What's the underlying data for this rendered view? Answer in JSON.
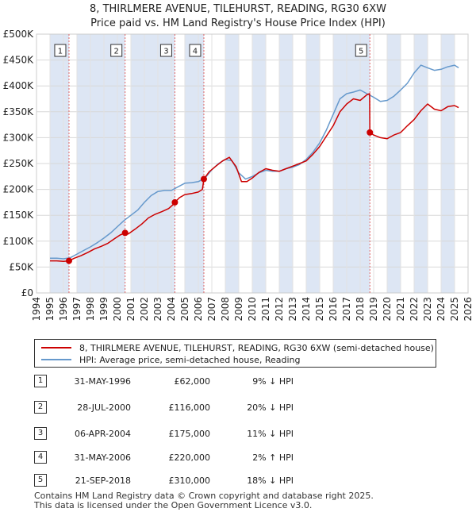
{
  "title_line1": "8, THIRLMERE AVENUE, TILEHURST, READING, RG30 6XW",
  "title_line2": "Price paid vs. HM Land Registry's House Price Index (HPI)",
  "colors": {
    "property": "#cc0000",
    "hpi": "#6699cc",
    "band": "#dde6f4",
    "vline": "#e06666"
  },
  "legend": {
    "property_label": "8, THIRLMERE AVENUE, TILEHURST, READING, RG30 6XW (semi-detached house)",
    "hpi_label": "HPI: Average price, semi-detached house, Reading"
  },
  "transactions": [
    {
      "num": "1",
      "date": "31-MAY-1996",
      "price": "£62,000",
      "hpi": "9% ↓ HPI"
    },
    {
      "num": "2",
      "date": "28-JUL-2000",
      "price": "£116,000",
      "hpi": "20% ↓ HPI"
    },
    {
      "num": "3",
      "date": "06-APR-2004",
      "price": "£175,000",
      "hpi": "11% ↓ HPI"
    },
    {
      "num": "4",
      "date": "31-MAY-2006",
      "price": "£220,000",
      "hpi": "2% ↑ HPI"
    },
    {
      "num": "5",
      "date": "21-SEP-2018",
      "price": "£310,000",
      "hpi": "18% ↓ HPI"
    }
  ],
  "footer_line1": "Contains HM Land Registry data © Crown copyright and database right 2025.",
  "footer_line2": "This data is licensed under the Open Government Licence v3.0.",
  "chart_data": {
    "type": "line",
    "title": "8, THIRLMERE AVENUE, TILEHURST, READING, RG30 6XW",
    "subtitle": "Price paid vs. HM Land Registry's House Price Index (HPI)",
    "xlabel": "",
    "ylabel": "",
    "xlim": [
      1994,
      2026
    ],
    "ylim": [
      0,
      500000
    ],
    "grid": true,
    "x_ticks": [
      1994,
      1995,
      1996,
      1997,
      1998,
      1999,
      2000,
      2001,
      2002,
      2003,
      2004,
      2005,
      2006,
      2007,
      2008,
      2009,
      2010,
      2011,
      2012,
      2013,
      2014,
      2015,
      2016,
      2017,
      2018,
      2019,
      2020,
      2021,
      2022,
      2023,
      2024,
      2025,
      2026
    ],
    "y_ticks": [
      0,
      50000,
      100000,
      150000,
      200000,
      250000,
      300000,
      350000,
      400000,
      450000,
      500000
    ],
    "y_tick_labels": [
      "£0",
      "£50K",
      "£100K",
      "£150K",
      "£200K",
      "£250K",
      "£300K",
      "£350K",
      "£400K",
      "£450K",
      "£500K"
    ],
    "shaded_bands": [
      [
        1995.0,
        1996.41
      ],
      [
        1997.0,
        2000.57
      ],
      [
        2001.0,
        2004.26
      ],
      [
        2005.0,
        2006.41
      ],
      [
        2008.0,
        2009.0
      ],
      [
        2010.0,
        2011.0
      ],
      [
        2012.0,
        2013.0
      ],
      [
        2014.0,
        2015.0
      ],
      [
        2016.0,
        2018.72
      ],
      [
        2020.0,
        2021.0
      ],
      [
        2022.0,
        2023.0
      ],
      [
        2024.0,
        2025.0
      ]
    ],
    "sales": [
      {
        "label": "1",
        "x": 1996.41,
        "y": 62000
      },
      {
        "label": "2",
        "x": 2000.57,
        "y": 116000
      },
      {
        "label": "3",
        "x": 2004.26,
        "y": 175000
      },
      {
        "label": "4",
        "x": 2006.41,
        "y": 220000
      },
      {
        "label": "5",
        "x": 2018.72,
        "y": 310000
      }
    ],
    "series": [
      {
        "name": "8, THIRLMERE AVENUE, TILEHURST, READING, RG30 6XW (semi-detached house)",
        "x": [
          1995.0,
          1995.5,
          1996.0,
          1996.41,
          1996.8,
          1997.3,
          1997.8,
          1998.3,
          1998.8,
          1999.3,
          1999.8,
          2000.2,
          2000.57,
          2000.8,
          2001.3,
          2001.8,
          2002.3,
          2002.8,
          2003.3,
          2003.8,
          2004.1,
          2004.26,
          2004.6,
          2005.0,
          2005.5,
          2006.0,
          2006.3,
          2006.41,
          2006.8,
          2007.3,
          2007.8,
          2008.3,
          2008.8,
          2009.2,
          2009.6,
          2010.0,
          2010.5,
          2011.0,
          2011.5,
          2012.0,
          2012.5,
          2013.0,
          2013.5,
          2014.0,
          2014.5,
          2015.0,
          2015.5,
          2016.0,
          2016.5,
          2017.0,
          2017.5,
          2018.0,
          2018.5,
          2018.7,
          2018.72,
          2019.0,
          2019.5,
          2020.0,
          2020.5,
          2021.0,
          2021.5,
          2022.0,
          2022.5,
          2023.0,
          2023.5,
          2024.0,
          2024.5,
          2025.0,
          2025.3
        ],
        "values": [
          62000,
          62000,
          61000,
          62000,
          67000,
          72000,
          78000,
          85000,
          90000,
          96000,
          105000,
          112000,
          116000,
          114000,
          123000,
          133000,
          145000,
          152000,
          157000,
          163000,
          170000,
          175000,
          184000,
          190000,
          192000,
          195000,
          200000,
          220000,
          234000,
          245000,
          255000,
          262000,
          244000,
          215000,
          215000,
          222000,
          233000,
          240000,
          237000,
          235000,
          240000,
          245000,
          250000,
          255000,
          268000,
          283000,
          303000,
          323000,
          350000,
          365000,
          375000,
          372000,
          383000,
          385000,
          310000,
          305000,
          300000,
          298000,
          305000,
          310000,
          323000,
          335000,
          352000,
          365000,
          355000,
          352000,
          360000,
          362000,
          358000
        ]
      },
      {
        "name": "HPI: Average price, semi-detached house, Reading",
        "x": [
          1995.0,
          1995.5,
          1996.0,
          1996.5,
          1997.0,
          1997.5,
          1998.0,
          1998.5,
          1999.0,
          1999.5,
          2000.0,
          2000.5,
          2001.0,
          2001.5,
          2002.0,
          2002.5,
          2003.0,
          2003.5,
          2004.0,
          2004.5,
          2005.0,
          2005.5,
          2006.0,
          2006.5,
          2007.0,
          2007.5,
          2008.0,
          2008.5,
          2009.0,
          2009.5,
          2010.0,
          2010.5,
          2011.0,
          2011.5,
          2012.0,
          2012.5,
          2013.0,
          2013.5,
          2014.0,
          2014.5,
          2015.0,
          2015.5,
          2016.0,
          2016.5,
          2017.0,
          2017.5,
          2018.0,
          2018.5,
          2019.0,
          2019.5,
          2020.0,
          2020.5,
          2021.0,
          2021.5,
          2022.0,
          2022.5,
          2023.0,
          2023.5,
          2024.0,
          2024.5,
          2025.0,
          2025.3
        ],
        "values": [
          67000,
          67000,
          66000,
          68000,
          75000,
          82000,
          89000,
          97000,
          106000,
          116000,
          128000,
          140000,
          150000,
          160000,
          175000,
          188000,
          196000,
          198000,
          198000,
          205000,
          212000,
          213000,
          215000,
          222000,
          238000,
          250000,
          258000,
          255000,
          232000,
          220000,
          225000,
          232000,
          237000,
          235000,
          235000,
          240000,
          243000,
          248000,
          258000,
          272000,
          290000,
          315000,
          345000,
          375000,
          385000,
          388000,
          392000,
          385000,
          378000,
          370000,
          372000,
          380000,
          392000,
          405000,
          425000,
          440000,
          435000,
          430000,
          432000,
          437000,
          440000,
          435000
        ]
      }
    ]
  }
}
